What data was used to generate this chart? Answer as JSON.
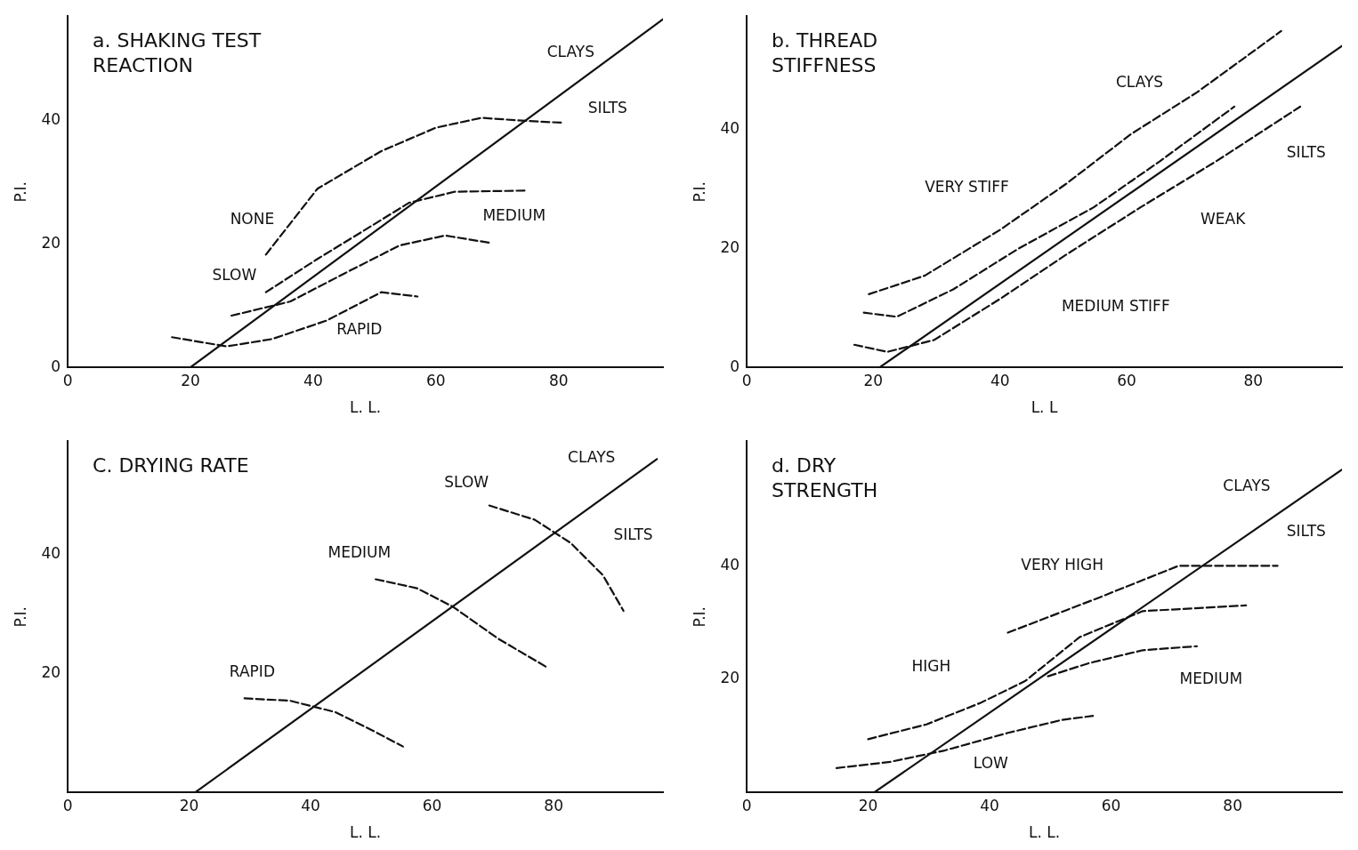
{
  "chart_data": [
    {
      "type": "line",
      "title": "a. SHAKING TEST REACTION",
      "xlabel": "L. L.",
      "ylabel": "P.I.",
      "xlim": [
        0,
        97
      ],
      "ylim": [
        0,
        57
      ],
      "xticks": [
        0,
        20,
        40,
        60,
        80
      ],
      "yticks": [
        0,
        20,
        40
      ],
      "marker": "none",
      "series": [
        {
          "color": "#111111",
          "line_style": "solid",
          "x": [
            20,
            97
          ],
          "values": [
            0,
            56.5
          ]
        },
        {
          "color": "#111111",
          "line_style": "dashed",
          "x": [
            32.3,
            40.7,
            51.1,
            60,
            67.4,
            74.8,
            80.7
          ],
          "values": [
            18.3,
            29,
            35.1,
            38.9,
            40.5,
            40,
            39.7
          ]
        },
        {
          "color": "#111111",
          "line_style": "dashed",
          "x": [
            32.3,
            40.7,
            48.1,
            55.6,
            63,
            74.8
          ],
          "values": [
            12.2,
            17.6,
            22.1,
            26.7,
            28.5,
            28.7
          ]
        },
        {
          "color": "#111111",
          "line_style": "dashed",
          "x": [
            26.7,
            36.3,
            45.2,
            54.1,
            61.5,
            68.9
          ],
          "values": [
            8.4,
            10.7,
            15.3,
            19.8,
            21.4,
            20.2
          ]
        },
        {
          "color": "#111111",
          "line_style": "dashed",
          "x": [
            17,
            25.9,
            33.3,
            42.2,
            51.1,
            57
          ],
          "values": [
            4.9,
            3.4,
            4.6,
            7.6,
            12.2,
            11.5
          ]
        }
      ],
      "annotations": [
        "NONE",
        "SLOW",
        "MEDIUM",
        "RAPID",
        "CLAYS",
        "SILTS"
      ]
    },
    {
      "type": "line",
      "title": "b. THREAD STIFFNESS",
      "xlabel": "L. L",
      "ylabel": "P.I.",
      "xlim": [
        0,
        94
      ],
      "ylim": [
        0,
        59
      ],
      "xticks": [
        0,
        20,
        40,
        60,
        80
      ],
      "yticks": [
        0,
        20,
        40
      ],
      "marker": "none",
      "series": [
        {
          "color": "#111111",
          "line_style": "solid",
          "x": [
            21,
            94
          ],
          "values": [
            0,
            54
          ]
        },
        {
          "color": "#111111",
          "line_style": "dashed",
          "x": [
            19.3,
            28.1,
            40,
            50.4,
            60.7,
            71.1,
            84.4
          ],
          "values": [
            12.3,
            15.4,
            23.1,
            30.8,
            39.2,
            46.2,
            56.5
          ]
        },
        {
          "color": "#111111",
          "line_style": "dashed",
          "x": [
            18.5,
            23.7,
            32.6,
            43,
            54.8,
            65.2,
            77
          ],
          "values": [
            9.2,
            8.5,
            13.1,
            20,
            26.9,
            34.6,
            43.8
          ]
        },
        {
          "color": "#111111",
          "line_style": "dashed",
          "x": [
            17,
            22.2,
            29.6,
            40,
            50.4,
            62.2,
            74.1,
            87.4
          ],
          "values": [
            3.8,
            2.6,
            4.6,
            11.5,
            18.9,
            26.9,
            34.6,
            43.8
          ]
        }
      ],
      "annotations": [
        "VERY STIFF",
        "MEDIUM STIFF",
        "WEAK",
        "CLAYS",
        "SILTS"
      ]
    },
    {
      "type": "line",
      "title": "C. DRYING RATE",
      "xlabel": "L. L.",
      "ylabel": "P.I.",
      "xlim": [
        0,
        98
      ],
      "ylim": [
        0,
        59
      ],
      "xticks": [
        0,
        20,
        40,
        60,
        80
      ],
      "yticks": [
        20,
        40
      ],
      "marker": "none",
      "series": [
        {
          "color": "#111111",
          "line_style": "solid",
          "x": [
            21,
            97
          ],
          "values": [
            0,
            56
          ]
        },
        {
          "color": "#111111",
          "line_style": "dashed",
          "x": [
            29.1,
            36.6,
            44,
            50,
            55.2
          ],
          "values": [
            15.8,
            15.4,
            13.5,
            10.5,
            7.7
          ]
        },
        {
          "color": "#111111",
          "line_style": "dashed",
          "x": [
            50.7,
            57.5,
            63.4,
            70.9,
            79.1
          ],
          "values": [
            35.8,
            34.3,
            31.2,
            25.8,
            20.9
          ]
        },
        {
          "color": "#111111",
          "line_style": "dashed",
          "x": [
            69.4,
            76.9,
            82.8,
            88.1,
            91.5
          ],
          "values": [
            48.2,
            45.8,
            41.9,
            36.5,
            30.5
          ]
        }
      ],
      "annotations": [
        "RAPID",
        "MEDIUM",
        "SLOW",
        "CLAYS",
        "SILTS"
      ]
    },
    {
      "type": "line",
      "title": "d. DRY STRENGTH",
      "xlabel": "L. L.",
      "ylabel": "P.I.",
      "xlim": [
        0,
        98
      ],
      "ylim": [
        0,
        62
      ],
      "xticks": [
        0,
        20,
        40,
        60,
        80
      ],
      "yticks": [
        20,
        40
      ],
      "marker": "none",
      "series": [
        {
          "color": "#111111",
          "line_style": "solid",
          "x": [
            21,
            98
          ],
          "values": [
            0,
            57
          ]
        },
        {
          "color": "#111111",
          "line_style": "dashed",
          "x": [
            43,
            57.8,
            71.1,
            87.4
          ],
          "values": [
            28.2,
            34.3,
            40,
            40
          ]
        },
        {
          "color": "#111111",
          "line_style": "dashed",
          "x": [
            20,
            29.6,
            38.5,
            45.9,
            54.8,
            65.2,
            82.2
          ],
          "values": [
            9.4,
            12,
            15.8,
            19.7,
            27.4,
            32,
            33
          ]
        },
        {
          "color": "#111111",
          "line_style": "dashed",
          "x": [
            49.6,
            56.3,
            65.2,
            74.1
          ],
          "values": [
            20.5,
            22.8,
            25.1,
            25.8
          ]
        },
        {
          "color": "#111111",
          "line_style": "dashed",
          "x": [
            14.8,
            23.7,
            32.6,
            43,
            51.9,
            57
          ],
          "values": [
            4.3,
            5.4,
            7.4,
            10.5,
            12.8,
            13.5
          ]
        }
      ],
      "annotations": [
        "HIGH",
        "VERY HIGH",
        "MEDIUM",
        "LOW",
        "CLAYS",
        "SILTS"
      ]
    }
  ]
}
